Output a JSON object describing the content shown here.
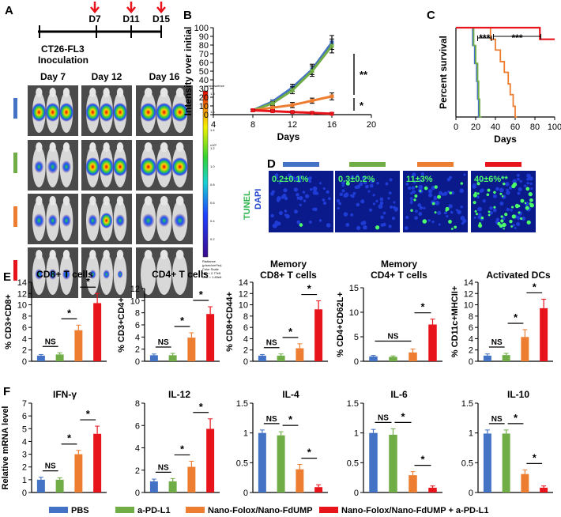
{
  "colors": {
    "PBS": "#4472c4",
    "aPDL1": "#70ad47",
    "nano": "#ed7d31",
    "combo": "#e8141c",
    "sig": "#000000"
  },
  "panel_labels": [
    "A",
    "B",
    "C",
    "D",
    "E",
    "F"
  ],
  "panelA": {
    "timepoints": [
      "D7",
      "D11",
      "D15"
    ],
    "inoculation": [
      "CT26-FL3",
      "Inoculation"
    ],
    "days": [
      "Day 7",
      "Day 12",
      "Day 16"
    ],
    "scale_top": "Luminescence",
    "scale_unit": "x10⁶",
    "scale_ticks": [
      "1.8",
      "1.6",
      "1.4",
      "1.2",
      "1.0",
      "0.8",
      "0.6",
      "0.4",
      "0.2"
    ],
    "scale_foot": [
      "Radiance",
      "(p/sec/cm²/sr)",
      "Color Scale",
      "Min = 2.77e5",
      "Max = 1.83e6"
    ],
    "row_colors": [
      "#4472c4",
      "#70ad47",
      "#ed7d31",
      "#e8141c"
    ]
  },
  "panelD": {
    "ylabel_tunel": "TUNEL",
    "ylabel_dapi": "DAPI",
    "labels": [
      "0.2±0.1%",
      "0.3±0.2%",
      "11±3%",
      "40±6%**"
    ],
    "colors": [
      "#4472c4",
      "#70ad47",
      "#ed7d31",
      "#e8141c"
    ]
  },
  "legend": [
    "PBS",
    "a-PD-L1",
    "Nano-Folox/Nano-FdUMP",
    "Nano-Folox/Nano-FdUMP + a-PD-L1"
  ],
  "chart_data": [
    {
      "id": "B",
      "type": "line",
      "title": "",
      "xlabel": "Days",
      "ylabel": "Intensity over initial",
      "xlim": [
        4,
        20
      ],
      "ylim": [
        0,
        100
      ],
      "xticks": [
        4,
        8,
        12,
        16,
        20
      ],
      "yticks": [
        0,
        10,
        20,
        30,
        40,
        50,
        60,
        70,
        80,
        90,
        100
      ],
      "x": [
        8,
        10,
        12,
        14,
        16
      ],
      "series": [
        {
          "name": "PBS",
          "values": [
            5,
            15,
            31,
            52,
            83
          ],
          "err": [
            1,
            2,
            4,
            6,
            8
          ]
        },
        {
          "name": "a-PD-L1",
          "values": [
            5,
            13,
            28,
            50,
            79
          ],
          "err": [
            1,
            2,
            4,
            6,
            8
          ]
        },
        {
          "name": "Nano-Folox/Nano-FdUMP",
          "values": [
            5,
            8,
            11,
            16,
            21
          ],
          "err": [
            1,
            2,
            3,
            3,
            4
          ]
        },
        {
          "name": "Nano-Folox/Nano-FdUMP + a-PD-L1",
          "values": [
            5,
            4,
            3,
            2,
            1
          ],
          "err": [
            1,
            1,
            1,
            1,
            1
          ]
        }
      ],
      "annotations": [
        "**",
        "*"
      ]
    },
    {
      "id": "C",
      "type": "line",
      "xlabel": "Days",
      "ylabel": "Percent survival",
      "xlim": [
        0,
        100
      ],
      "ylim": [
        0,
        100
      ],
      "xticks": [
        0,
        20,
        40,
        60,
        80,
        100
      ],
      "series": [
        {
          "name": "PBS",
          "steps": [
            [
              0,
              100
            ],
            [
              17,
              100
            ],
            [
              17,
              80
            ],
            [
              19,
              80
            ],
            [
              19,
              60
            ],
            [
              21,
              60
            ],
            [
              21,
              40
            ],
            [
              22,
              40
            ],
            [
              22,
              20
            ],
            [
              23,
              20
            ],
            [
              23,
              0
            ],
            [
              25,
              0
            ]
          ]
        },
        {
          "name": "a-PD-L1",
          "steps": [
            [
              0,
              100
            ],
            [
              18,
              100
            ],
            [
              18,
              80
            ],
            [
              20,
              80
            ],
            [
              20,
              60
            ],
            [
              22,
              60
            ],
            [
              22,
              40
            ],
            [
              23,
              40
            ],
            [
              23,
              20
            ],
            [
              24,
              20
            ],
            [
              24,
              0
            ],
            [
              26,
              0
            ]
          ]
        },
        {
          "name": "Nano-Folox/Nano-FdUMP",
          "steps": [
            [
              0,
              100
            ],
            [
              35,
              100
            ],
            [
              35,
              87
            ],
            [
              40,
              87
            ],
            [
              40,
              75
            ],
            [
              45,
              75
            ],
            [
              45,
              62
            ],
            [
              49,
              62
            ],
            [
              49,
              50
            ],
            [
              53,
              50
            ],
            [
              53,
              37
            ],
            [
              55,
              37
            ],
            [
              55,
              25
            ],
            [
              58,
              25
            ],
            [
              58,
              12
            ],
            [
              60,
              12
            ],
            [
              60,
              0
            ],
            [
              62,
              0
            ]
          ]
        },
        {
          "name": "Nano-Folox/Nano-FdUMP + a-PD-L1",
          "steps": [
            [
              0,
              100
            ],
            [
              85,
              100
            ],
            [
              85,
              87
            ],
            [
              100,
              87
            ]
          ]
        }
      ],
      "annotations": [
        "***",
        "***"
      ]
    },
    {
      "id": "E1",
      "type": "bar",
      "title": "CD8+ T cells",
      "ylabel": "% CD3+CD8+",
      "ylim": [
        0,
        14
      ],
      "yticks": [
        0,
        2,
        4,
        6,
        8,
        10,
        12,
        14
      ],
      "categories": [
        "PBS",
        "a-PD-L1",
        "Nano-Folox/Nano-FdUMP",
        "Nano-Folox/Nano-FdUMP + a-PD-L1"
      ],
      "values": [
        1.0,
        1.2,
        5.5,
        10.3
      ],
      "err": [
        0.2,
        0.3,
        0.9,
        1.7
      ],
      "sig": [
        "NS",
        "*",
        "*"
      ]
    },
    {
      "id": "E2",
      "type": "bar",
      "title": "CD4+ T cells",
      "ylabel": "% CD3+CD4+",
      "ylim": [
        0,
        12
      ],
      "yticks": [
        0,
        2,
        4,
        6,
        8,
        10,
        12
      ],
      "categories": [
        "PBS",
        "a-PD-L1",
        "Nano-Folox/Nano-FdUMP",
        "Nano-Folox/Nano-FdUMP + a-PD-L1"
      ],
      "values": [
        1.0,
        1.0,
        3.9,
        7.8
      ],
      "err": [
        0.2,
        0.3,
        0.8,
        1.2
      ],
      "sig": [
        "NS",
        "*",
        "*"
      ]
    },
    {
      "id": "E3",
      "type": "bar",
      "title": "Memory",
      "title2": "CD8+ T cells",
      "ylabel": "% CD8+CD44+",
      "ylim": [
        0,
        14
      ],
      "yticks": [
        0,
        2,
        4,
        6,
        8,
        10,
        12,
        14
      ],
      "categories": [
        "PBS",
        "a-PD-L1",
        "Nano-Folox/Nano-FdUMP",
        "Nano-Folox/Nano-FdUMP + a-PD-L1"
      ],
      "values": [
        1.0,
        1.0,
        2.3,
        9.2
      ],
      "err": [
        0.2,
        0.3,
        0.8,
        1.5
      ],
      "sig": [
        "NS",
        "*",
        "*"
      ]
    },
    {
      "id": "E4",
      "type": "bar",
      "title": "Memory",
      "title2": "CD4+ T cells",
      "ylabel": "% CD4+CD62L+",
      "ylim": [
        0,
        15
      ],
      "yticks": [
        0,
        5,
        10,
        15
      ],
      "categories": [
        "PBS",
        "a-PD-L1",
        "Nano-Folox/Nano-FdUMP",
        "Nano-Folox/Nano-FdUMP + a-PD-L1"
      ],
      "values": [
        1.0,
        0.9,
        1.8,
        7.5
      ],
      "err": [
        0.2,
        0.2,
        0.7,
        1.1
      ],
      "sig": [
        "NS",
        "*"
      ]
    },
    {
      "id": "E5",
      "type": "bar",
      "title": "Activated DCs",
      "ylabel": "% CD11c+MHCII+",
      "ylim": [
        0,
        14
      ],
      "yticks": [
        0,
        2,
        4,
        6,
        8,
        10,
        12,
        14
      ],
      "categories": [
        "PBS",
        "a-PD-L1",
        "Nano-Folox/Nano-FdUMP",
        "Nano-Folox/Nano-FdUMP + a-PD-L1"
      ],
      "values": [
        1.0,
        1.1,
        4.3,
        9.4
      ],
      "err": [
        0.3,
        0.3,
        1.3,
        1.6
      ],
      "sig": [
        "NS",
        "*",
        "*"
      ]
    },
    {
      "id": "F1",
      "type": "bar",
      "title": "IFN-γ",
      "ylabel": "Relative mRNA level",
      "ylim": [
        0,
        7
      ],
      "yticks": [
        0,
        1,
        2,
        3,
        4,
        5,
        6,
        7
      ],
      "categories": [
        "PBS",
        "a-PD-L1",
        "Nano-Folox/Nano-FdUMP",
        "Nano-Folox/Nano-FdUMP + a-PD-L1"
      ],
      "values": [
        1.0,
        1.0,
        3.0,
        4.6
      ],
      "err": [
        0.2,
        0.15,
        0.3,
        0.6
      ],
      "sig": [
        "NS",
        "*",
        "*"
      ]
    },
    {
      "id": "F2",
      "type": "bar",
      "title": "IL-12",
      "ylabel": "",
      "ylim": [
        0,
        8
      ],
      "yticks": [
        0,
        2,
        4,
        6,
        8
      ],
      "categories": [
        "PBS",
        "a-PD-L1",
        "Nano-Folox/Nano-FdUMP",
        "Nano-Folox/Nano-FdUMP + a-PD-L1"
      ],
      "values": [
        1.0,
        1.0,
        2.3,
        5.7
      ],
      "err": [
        0.2,
        0.25,
        0.5,
        0.9
      ],
      "sig": [
        "NS",
        "*",
        "*"
      ]
    },
    {
      "id": "F3",
      "type": "bar",
      "title": "IL-4",
      "ylabel": "",
      "ylim": [
        0,
        1.5
      ],
      "yticks": [
        0,
        0.5,
        1,
        1.5
      ],
      "categories": [
        "PBS",
        "a-PD-L1",
        "Nano-Folox/Nano-FdUMP",
        "Nano-Folox/Nano-FdUMP + a-PD-L1"
      ],
      "values": [
        1.0,
        0.96,
        0.39,
        0.09
      ],
      "err": [
        0.05,
        0.06,
        0.08,
        0.04
      ],
      "sig": [
        "NS",
        "*",
        "*"
      ]
    },
    {
      "id": "F4",
      "type": "bar",
      "title": "IL-6",
      "ylabel": "",
      "ylim": [
        0,
        1.5
      ],
      "yticks": [
        0,
        0.5,
        1,
        1.5
      ],
      "categories": [
        "PBS",
        "a-PD-L1",
        "Nano-Folox/Nano-FdUMP",
        "Nano-Folox/Nano-FdUMP + a-PD-L1"
      ],
      "values": [
        1.0,
        0.97,
        0.29,
        0.08
      ],
      "err": [
        0.06,
        0.1,
        0.06,
        0.03
      ],
      "sig": [
        "NS",
        "*",
        "*"
      ]
    },
    {
      "id": "F5",
      "type": "bar",
      "title": "IL-10",
      "ylabel": "",
      "ylim": [
        0,
        1.5
      ],
      "yticks": [
        0,
        0.5,
        1,
        1.5
      ],
      "categories": [
        "PBS",
        "a-PD-L1",
        "Nano-Folox/Nano-FdUMP",
        "Nano-Folox/Nano-FdUMP + a-PD-L1"
      ],
      "values": [
        0.99,
        0.99,
        0.31,
        0.08
      ],
      "err": [
        0.06,
        0.06,
        0.07,
        0.03
      ],
      "sig": [
        "NS",
        "*",
        "*"
      ]
    }
  ]
}
